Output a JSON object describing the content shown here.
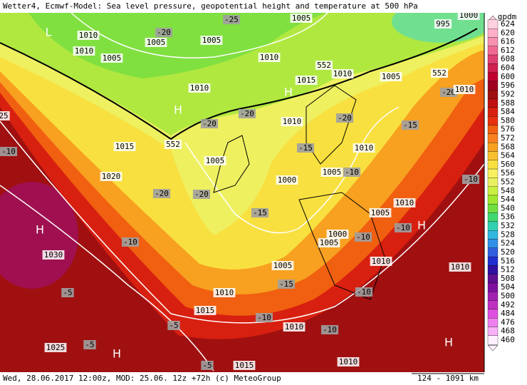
{
  "header": {
    "title": "Wetter4, Ecmwf-Model: Sea level pressure, geopotential height and temperature at 500 hPa"
  },
  "footer": {
    "text": "Wed, 28.06.2017 12:00z, MOD: 25.06. 12z +72h (c) MeteoGroup",
    "scale": "124 - 1091 km"
  },
  "legend": {
    "title": "gpdm",
    "items": [
      {
        "label": "624",
        "color": "#ffd0e0"
      },
      {
        "label": "620",
        "color": "#ffb0c8"
      },
      {
        "label": "616",
        "color": "#f890b0"
      },
      {
        "label": "612",
        "color": "#f06890"
      },
      {
        "label": "608",
        "color": "#e04070"
      },
      {
        "label": "604",
        "color": "#d02050"
      },
      {
        "label": "600",
        "color": "#c00030"
      },
      {
        "label": "596",
        "color": "#a00020"
      },
      {
        "label": "592",
        "color": "#a01010"
      },
      {
        "label": "588",
        "color": "#c01010"
      },
      {
        "label": "584",
        "color": "#d82010"
      },
      {
        "label": "580",
        "color": "#e83010"
      },
      {
        "label": "576",
        "color": "#f06010"
      },
      {
        "label": "572",
        "color": "#f88020"
      },
      {
        "label": "568",
        "color": "#f8a020"
      },
      {
        "label": "564",
        "color": "#f8c030"
      },
      {
        "label": "560",
        "color": "#f8e040"
      },
      {
        "label": "556",
        "color": "#f8f060"
      },
      {
        "label": "552",
        "color": "#e8f060"
      },
      {
        "label": "548",
        "color": "#c8f040"
      },
      {
        "label": "544",
        "color": "#a0e830"
      },
      {
        "label": "540",
        "color": "#70e040"
      },
      {
        "label": "536",
        "color": "#40d870"
      },
      {
        "label": "532",
        "color": "#30d0b0"
      },
      {
        "label": "528",
        "color": "#30b8e0"
      },
      {
        "label": "524",
        "color": "#3090e8"
      },
      {
        "label": "520",
        "color": "#3060e0"
      },
      {
        "label": "516",
        "color": "#2030d0"
      },
      {
        "label": "512",
        "color": "#3010a0"
      },
      {
        "label": "508",
        "color": "#601090"
      },
      {
        "label": "504",
        "color": "#8010a0"
      },
      {
        "label": "500",
        "color": "#a020b0"
      },
      {
        "label": "492",
        "color": "#c030c0"
      },
      {
        "label": "484",
        "color": "#e050e0"
      },
      {
        "label": "476",
        "color": "#f080f0"
      },
      {
        "label": "468",
        "color": "#f8b0f8"
      },
      {
        "label": "460",
        "color": "#fff0ff"
      }
    ]
  },
  "map": {
    "labels": [
      "1005",
      "-25",
      "1000",
      "995",
      "1010",
      "-20",
      "1005",
      "1005",
      "1010",
      "1005",
      "1010",
      "552",
      "1010",
      "1005",
      "552",
      "1010",
      "1015",
      "-20",
      "1010",
      "25",
      "-20",
      "-20",
      "1010",
      "-20",
      "-15",
      "1015",
      "552",
      "-10",
      "-15",
      "1010",
      "1005",
      "1005",
      "-10",
      "1020",
      "1000",
      "-10",
      "-20",
      "-20",
      "1010",
      "-15",
      "1005",
      "-10",
      "1000",
      "-10",
      "-10",
      "1005",
      "1030",
      "1010",
      "1010",
      "1005",
      "-15",
      "-10",
      "1010",
      "-5",
      "1015",
      "-10",
      "1010",
      "-5",
      "-10",
      "-5",
      "1025",
      "-5",
      "1015",
      "1010",
      "L",
      "H",
      "H",
      "H",
      "H",
      "H",
      "H"
    ]
  }
}
